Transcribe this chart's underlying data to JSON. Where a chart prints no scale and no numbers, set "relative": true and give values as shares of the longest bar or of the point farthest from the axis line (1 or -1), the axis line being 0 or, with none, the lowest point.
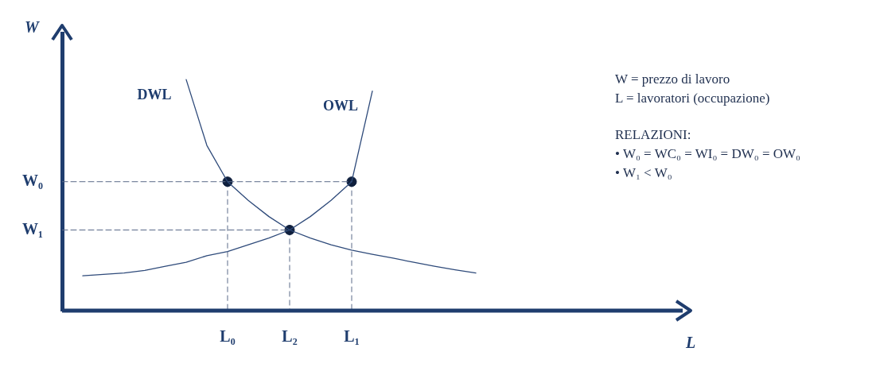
{
  "chart_data": {
    "type": "line",
    "xlabel": "L",
    "ylabel": "W",
    "relative": true,
    "categories": [
      null,
      null,
      null,
      null,
      null,
      null,
      null,
      null,
      "L₀",
      null,
      null,
      "L₂",
      null,
      null,
      "L₁",
      null,
      null,
      null,
      null,
      null,
      null,
      null,
      null,
      null,
      null,
      null,
      null,
      null,
      null,
      null,
      null
    ],
    "grid": false,
    "legend": false,
    "marker": "none",
    "line_style": "solid",
    "series": [
      {
        "name": "DWL",
        "color": "#2e4a7a",
        "values": [
          null,
          null,
          null,
          null,
          null,
          null,
          1.0,
          0.715,
          0.558,
          0.477,
          0.407,
          0.349,
          0.314,
          0.285,
          0.262,
          0.244,
          0.227,
          0.209,
          0.192,
          0.177,
          0.163,
          null,
          null,
          null,
          null,
          null,
          null,
          null,
          null,
          null,
          null
        ]
      },
      {
        "name": "OWL",
        "color": "#2e4a7a",
        "values": [
          null,
          0.151,
          0.157,
          0.163,
          0.174,
          0.192,
          0.209,
          0.238,
          0.256,
          0.285,
          0.314,
          0.349,
          0.407,
          0.477,
          0.558,
          0.95,
          null,
          null,
          null,
          null,
          null,
          null,
          null,
          null,
          null,
          null,
          null,
          null,
          null,
          null,
          null
        ]
      },
      {
        "name": "W₀",
        "color": "#5a6a88",
        "line_style": "dashed",
        "values": [
          0.558,
          0.558,
          0.558,
          0.558,
          0.558,
          0.558,
          0.558,
          0.558,
          0.558,
          0.558,
          0.558,
          0.558,
          0.558,
          0.558,
          0.558,
          null,
          null,
          null,
          null,
          null,
          null,
          null,
          null,
          null,
          null,
          null,
          null,
          null,
          null,
          null,
          null
        ]
      },
      {
        "name": "W₁",
        "color": "#5a6a88",
        "line_style": "dashed",
        "values": [
          0.349,
          0.349,
          0.349,
          0.349,
          0.349,
          0.349,
          0.349,
          0.349,
          0.349,
          0.349,
          0.349,
          0.349,
          null,
          null,
          null,
          null,
          null,
          null,
          null,
          null,
          null,
          null,
          null,
          null,
          null,
          null,
          null,
          null,
          null,
          null,
          null
        ]
      },
      {
        "type": "scatter",
        "marker": "circle",
        "line_style": "dashed",
        "color": "#0f1f3d",
        "x": [
          "L₀",
          "L₁",
          "L₂"
        ],
        "values": [
          0.558,
          0.558,
          0.349
        ]
      }
    ],
    "ref_lines": [
      {
        "axis": "y",
        "value": 0,
        "color": "#1f3d6e"
      }
    ],
    "annotations": [
      "W = prezzo di lavoro",
      "L = lavoratori (occupazione)",
      "RELAZIONI:",
      "•   W₀ = WC₀ = WI₀ = DW₀ = OW₀",
      "•   W₁ < W₀"
    ]
  }
}
